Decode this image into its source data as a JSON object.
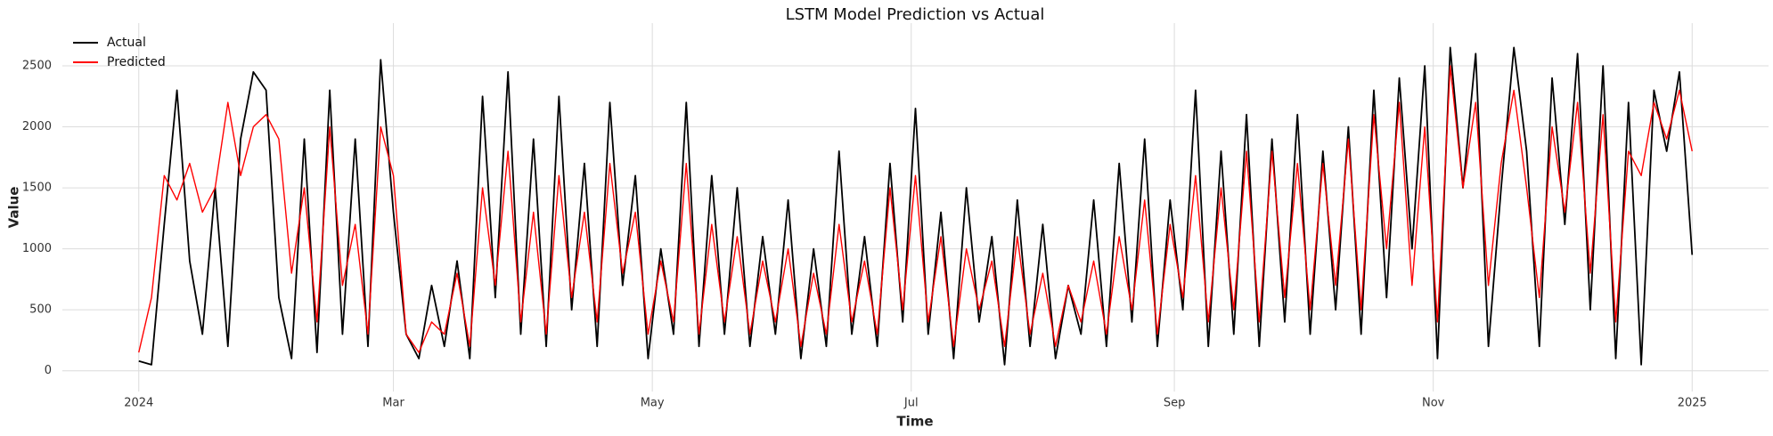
{
  "chart_data": {
    "type": "line",
    "title": "LSTM Model Prediction vs Actual",
    "xlabel": "Time",
    "ylabel": "Value",
    "x": [
      0,
      3,
      6,
      9,
      12,
      15,
      18,
      21,
      24,
      27,
      30,
      33,
      36,
      39,
      42,
      45,
      48,
      51,
      54,
      57,
      60,
      63,
      66,
      69,
      72,
      75,
      78,
      81,
      84,
      87,
      90,
      93,
      96,
      99,
      102,
      105,
      108,
      111,
      114,
      117,
      120,
      123,
      126,
      129,
      132,
      135,
      138,
      141,
      144,
      147,
      150,
      153,
      156,
      159,
      162,
      165,
      168,
      171,
      174,
      177,
      180,
      183,
      186,
      189,
      192,
      195,
      198,
      201,
      204,
      207,
      210,
      213,
      216,
      219,
      222,
      225,
      228,
      231,
      234,
      237,
      240,
      243,
      246,
      249,
      252,
      255,
      258,
      261,
      264,
      267,
      270,
      273,
      276,
      279,
      282,
      285,
      288,
      291,
      294,
      297,
      300,
      303,
      306,
      309,
      312,
      315,
      318,
      321,
      324,
      327,
      330,
      333,
      336,
      339,
      342,
      345,
      348,
      351,
      354,
      357,
      360,
      363,
      366
    ],
    "series": [
      {
        "name": "Actual",
        "color": "#000000",
        "values": [
          80,
          50,
          1200,
          2300,
          900,
          300,
          1500,
          200,
          1900,
          2450,
          2300,
          600,
          100,
          1900,
          150,
          2300,
          300,
          1900,
          200,
          2550,
          1300,
          300,
          100,
          700,
          200,
          900,
          100,
          2250,
          600,
          2450,
          300,
          1900,
          200,
          2250,
          500,
          1700,
          200,
          2200,
          700,
          1600,
          100,
          1000,
          300,
          2200,
          200,
          1600,
          300,
          1500,
          200,
          1100,
          300,
          1400,
          100,
          1000,
          200,
          1800,
          300,
          1100,
          200,
          1700,
          400,
          2150,
          300,
          1300,
          100,
          1500,
          400,
          1100,
          50,
          1400,
          200,
          1200,
          100,
          700,
          300,
          1400,
          200,
          1700,
          400,
          1900,
          200,
          1400,
          500,
          2300,
          200,
          1800,
          300,
          2100,
          200,
          1900,
          400,
          2100,
          300,
          1800,
          500,
          2000,
          300,
          2300,
          600,
          2400,
          1000,
          2500,
          100,
          2650,
          1500,
          2600,
          200,
          1500,
          2650,
          1800,
          200,
          2400,
          1200,
          2600,
          500,
          2500,
          100,
          2200,
          50,
          2300,
          1800,
          2450,
          950
        ]
      },
      {
        "name": "Predicted",
        "color": "#ff0000",
        "values": [
          150,
          600,
          1600,
          1400,
          1700,
          1300,
          1500,
          2200,
          1600,
          2000,
          2100,
          1900,
          800,
          1500,
          400,
          2000,
          700,
          1200,
          300,
          2000,
          1600,
          300,
          150,
          400,
          300,
          800,
          200,
          1500,
          700,
          1800,
          400,
          1300,
          300,
          1600,
          600,
          1300,
          400,
          1700,
          800,
          1300,
          300,
          900,
          400,
          1700,
          300,
          1200,
          400,
          1100,
          300,
          900,
          400,
          1000,
          200,
          800,
          300,
          1200,
          400,
          900,
          300,
          1500,
          500,
          1600,
          400,
          1100,
          200,
          1000,
          500,
          900,
          200,
          1100,
          300,
          800,
          200,
          700,
          400,
          900,
          300,
          1100,
          500,
          1400,
          300,
          1200,
          600,
          1600,
          400,
          1500,
          500,
          1800,
          400,
          1800,
          600,
          1700,
          500,
          1700,
          700,
          1900,
          500,
          2100,
          1000,
          2200,
          700,
          2000,
          400,
          2500,
          1500,
          2200,
          700,
          1700,
          2300,
          1500,
          600,
          2000,
          1300,
          2200,
          800,
          2100,
          400,
          1800,
          1600,
          2200,
          1900,
          2300,
          1800
        ]
      }
    ],
    "xlim": [
      -18,
      384
    ],
    "xticks": [
      {
        "value": 0,
        "label": "2024"
      },
      {
        "value": 60,
        "label": "Mar"
      },
      {
        "value": 121,
        "label": "May"
      },
      {
        "value": 182,
        "label": "Jul"
      },
      {
        "value": 244,
        "label": "Sep"
      },
      {
        "value": 305,
        "label": "Nov"
      },
      {
        "value": 366,
        "label": "2025"
      }
    ],
    "ylim": [
      -170,
      2850
    ],
    "yticks": [
      0,
      500,
      1000,
      1500,
      2000,
      2500
    ],
    "grid": true,
    "legend": "upper left"
  }
}
